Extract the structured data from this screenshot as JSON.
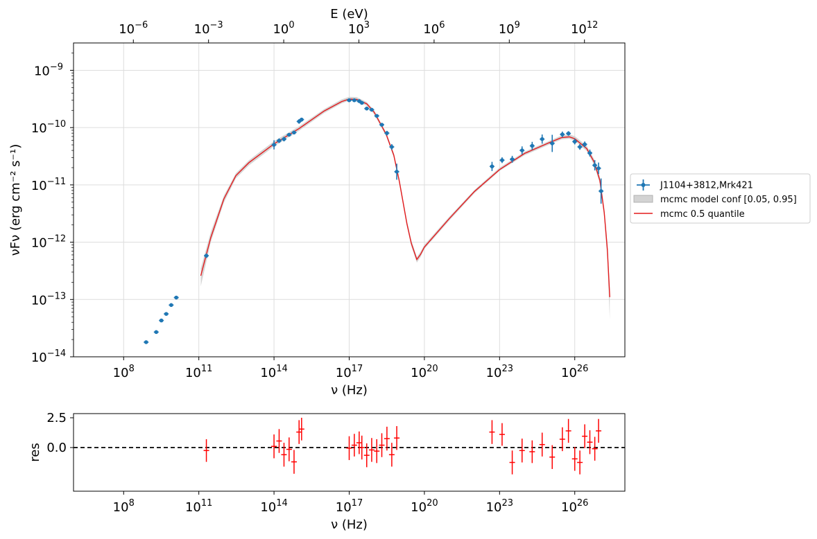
{
  "chart_data": [
    {
      "type": "scatter",
      "panel": "sed",
      "xlabel_top": "E (eV)",
      "xlabel": "ν  (Hz)",
      "ylabel": "νFν  (erg cm⁻²  s⁻¹)",
      "x_scale": "log",
      "y_scale": "log",
      "xlim": [
        1000000.0,
        1e+28
      ],
      "ylim": [
        1e-14,
        3e-09
      ],
      "top_xlim_eV": [
        4.1e-09,
        41000000000000.0
      ],
      "grid": true,
      "legend_location": "right",
      "x_tick_labels": [
        "10^8",
        "10^11",
        "10^14",
        "10^17",
        "10^20",
        "10^23",
        "10^26"
      ],
      "x_tick_values": [
        100000000.0,
        100000000000.0,
        100000000000000.0,
        1e+17,
        1e+20,
        1e+23,
        1e+26
      ],
      "y_tick_labels": [
        "10^−14",
        "10^−13",
        "10^−12",
        "10^−11",
        "10^−10",
        "10^−9"
      ],
      "y_tick_values": [
        1e-14,
        1e-13,
        1e-12,
        1e-11,
        1e-10,
        1e-09
      ],
      "top_tick_labels": [
        "10^−6",
        "10^−3",
        "10^0",
        "10^3",
        "10^6",
        "10^9",
        "10^12"
      ],
      "top_tick_values_eV": [
        1e-06,
        0.001,
        1,
        1000.0,
        1000000.0,
        1000000000.0,
        1000000000000.0
      ],
      "series": [
        {
          "name": "J1104+3812,Mrk421",
          "kind": "data",
          "color": "#1f77b4",
          "x": [
            790000000.0,
            2000000000.0,
            3200000000.0,
            5000000000.0,
            7900000000.0,
            12600000000.0,
            200000000000.0,
            100000000000000.0,
            160000000000000.0,
            250000000000000.0,
            400000000000000.0,
            630000000000000.0,
            1000000000000000.0,
            1260000000000000.0,
            1e+17,
            1.6e+17,
            2.5e+17,
            3.2e+17,
            5e+17,
            7.9e+17,
            1.26e+18,
            2e+18,
            3.2e+18,
            5e+18,
            7.9e+18,
            5e+22,
            1.26e+23,
            3.2e+23,
            7.9e+23,
            2e+24,
            5e+24,
            1.26e+25,
            3.2e+25,
            5.6e+25,
            1e+26,
            1.6e+26,
            2.5e+26,
            4e+26,
            6.3e+26,
            8.9e+26
          ],
          "y": [
            1.8e-14,
            2.7e-14,
            4.3e-14,
            5.6e-14,
            8e-14,
            1.08e-13,
            5.8e-13,
            5e-11,
            5.9e-11,
            6.3e-11,
            7.5e-11,
            8.2e-11,
            1.28e-10,
            1.38e-10,
            3e-10,
            3e-10,
            2.9e-10,
            2.7e-10,
            2.15e-10,
            2.05e-10,
            1.6e-10,
            1.12e-10,
            8e-11,
            4.6e-11,
            1.7e-11,
            2.1e-11,
            2.7e-11,
            2.8e-11,
            4e-11,
            4.8e-11,
            6.3e-11,
            5.3e-11,
            7.6e-11,
            7.9e-11,
            5.7e-11,
            4.6e-11,
            5.1e-11,
            3.6e-11,
            2.2e-11,
            1.95e-11
          ],
          "yerr_dex": [
            0.02,
            0.02,
            0.02,
            0.02,
            0.02,
            0.02,
            0.04,
            0.08,
            0.04,
            0.04,
            0.03,
            0.03,
            0.04,
            0.03,
            0.02,
            0.02,
            0.02,
            0.02,
            0.03,
            0.02,
            0.02,
            0.02,
            0.04,
            0.05,
            0.14,
            0.08,
            0.05,
            0.06,
            0.07,
            0.07,
            0.08,
            0.15,
            0.05,
            0.04,
            0.05,
            0.05,
            0.05,
            0.06,
            0.09,
            0.1
          ],
          "extra_point": {
            "x": 1.12e+27,
            "y": 7.8e-12,
            "yerr_dex": 0.22
          }
        },
        {
          "name": "mcmc model conf [0.05, 0.95]",
          "kind": "band",
          "color": "#d0d0d0",
          "x": [
            120000000000.0,
            300000000000.0,
            1000000000000.0,
            3000000000000.0,
            10000000000000.0,
            100000000000000.0,
            1000000000000000.0,
            1e+16,
            5e+16,
            1e+17,
            2e+17,
            5e+17,
            1e+18,
            3e+18,
            6e+18,
            1e+19,
            2e+19,
            3e+19,
            5e+19,
            7e+19,
            1e+20,
            1e+21,
            1e+22,
            1e+23,
            1e+24,
            1e+25,
            3e+25,
            6e+25,
            1e+26,
            3e+26,
            6e+26,
            1e+27,
            1.5e+27,
            2e+27,
            2.5e+27
          ],
          "y_high": [
            3.5e-13,
            1.5e-12,
            6.5e-12,
            1.6e-11,
            2.7e-11,
            5.8e-11,
            1.05e-10,
            2.1e-10,
            3.1e-10,
            3.45e-10,
            3.4e-10,
            2.8e-10,
            2e-10,
            8.2e-11,
            3.6e-11,
            1.3e-11,
            2.4e-12,
            1.1e-12,
            5.5e-13,
            6.8e-13,
            9e-13,
            2.8e-12,
            8.2e-12,
            2e-11,
            3.8e-11,
            5.9e-11,
            7.3e-11,
            7.6e-11,
            7.1e-11,
            4.8e-11,
            2.8e-11,
            1.4e-11,
            4e-12,
            1e-12,
            1.6e-13
          ],
          "y_low": [
            1.7e-13,
            1e-12,
            4.9e-12,
            1.3e-11,
            2.2e-11,
            4.7e-11,
            8.8e-11,
            1.8e-10,
            2.65e-10,
            2.95e-10,
            2.9e-10,
            2.4e-10,
            1.7e-10,
            7e-11,
            3e-11,
            1.05e-11,
            1.9e-12,
            8.5e-13,
            4.4e-13,
            5.5e-13,
            7.6e-13,
            2.4e-12,
            7.2e-12,
            1.75e-11,
            3.3e-11,
            5.1e-11,
            6.2e-11,
            6.4e-11,
            5.9e-11,
            3.9e-11,
            2.2e-11,
            1.05e-11,
            2.7e-12,
            5e-13,
            4.5e-14
          ]
        },
        {
          "name": "mcmc 0.5 quantile",
          "kind": "line",
          "color": "#e31a1c",
          "x": [
            120000000000.0,
            300000000000.0,
            1000000000000.0,
            3000000000000.0,
            10000000000000.0,
            100000000000000.0,
            1000000000000000.0,
            1e+16,
            5e+16,
            1e+17,
            2e+17,
            5e+17,
            1e+18,
            3e+18,
            6e+18,
            1e+19,
            2e+19,
            3e+19,
            5e+19,
            7e+19,
            1e+20,
            1e+21,
            1e+22,
            1e+23,
            1e+24,
            1e+25,
            3e+25,
            6e+25,
            1e+26,
            3e+26,
            6e+26,
            1e+27,
            1.5e+27,
            2e+27,
            2.5e+27
          ],
          "y": [
            2.6e-13,
            1.2e-12,
            5.7e-12,
            1.45e-11,
            2.45e-11,
            5.2e-11,
            9.6e-11,
            1.95e-10,
            2.85e-10,
            3.15e-10,
            3.1e-10,
            2.6e-10,
            1.85e-10,
            7.6e-11,
            3.3e-11,
            1.15e-11,
            2.1e-12,
            9.6e-13,
            5e-13,
            6.1e-13,
            8.2e-13,
            2.6e-12,
            7.7e-12,
            1.85e-11,
            3.55e-11,
            5.5e-11,
            6.7e-11,
            6.9e-11,
            6.4e-11,
            4.3e-11,
            2.5e-11,
            1.2e-11,
            3.3e-12,
            7.5e-13,
            1.1e-13
          ]
        }
      ]
    },
    {
      "type": "scatter",
      "panel": "residuals",
      "xlabel": "ν  (Hz)",
      "ylabel": "res",
      "x_scale": "log",
      "xlim": [
        1000000.0,
        1e+28
      ],
      "ylim": [
        -2.5,
        2.5
      ],
      "x_tick_labels": [
        "10^8",
        "10^11",
        "10^14",
        "10^17",
        "10^20",
        "10^23",
        "10^26"
      ],
      "x_tick_values": [
        100000000.0,
        100000000000.0,
        100000000000000.0,
        1e+17,
        1e+20,
        1e+23,
        1e+26
      ],
      "y_tick_labels": [
        "2.5",
        "0.0"
      ],
      "y_tick_values": [
        2.5,
        0.0
      ],
      "reference_line": {
        "y": 0.0,
        "style": "dashed",
        "color": "#000000"
      },
      "series": [
        {
          "name": "residuals",
          "color": "#ff0000",
          "x": [
            200000000000.0,
            100000000000000.0,
            160000000000000.0,
            250000000000000.0,
            400000000000000.0,
            630000000000000.0,
            1000000000000000.0,
            1260000000000000.0,
            1e+17,
            1.6e+17,
            2.5e+17,
            3.2e+17,
            5e+17,
            7.9e+17,
            1.26e+18,
            2e+18,
            3.2e+18,
            5e+18,
            7.9e+18,
            5e+22,
            1.26e+23,
            3.2e+23,
            7.9e+23,
            2e+24,
            5e+24,
            1.26e+25,
            3.2e+25,
            5.6e+25,
            1e+26,
            1.6e+26,
            2.5e+26,
            4e+26,
            6.3e+26,
            8.9e+26
          ],
          "y": [
            -0.25,
            0.1,
            0.55,
            -0.6,
            -0.15,
            -1.2,
            1.3,
            1.55,
            -0.05,
            0.2,
            0.4,
            0.0,
            -0.65,
            -0.2,
            -0.3,
            0.2,
            0.75,
            -0.6,
            0.8,
            1.3,
            1.1,
            -1.25,
            -0.25,
            -0.35,
            0.25,
            -0.8,
            0.7,
            1.4,
            -0.95,
            -1.25,
            0.95,
            0.45,
            -0.1,
            1.4
          ],
          "yerr": [
            0.95,
            1.0,
            1.0,
            1.0,
            1.0,
            1.0,
            1.0,
            0.95,
            1.0,
            0.95,
            0.95,
            1.0,
            1.0,
            1.0,
            1.0,
            1.0,
            1.0,
            1.0,
            1.0,
            1.0,
            0.95,
            1.0,
            1.0,
            0.95,
            1.0,
            1.0,
            1.0,
            1.0,
            1.0,
            1.0,
            1.0,
            1.0,
            1.0,
            1.0
          ]
        }
      ]
    }
  ],
  "legend": {
    "items": [
      {
        "label": "J1104+3812,Mrk421"
      },
      {
        "label": "mcmc model conf [0.05, 0.95]"
      },
      {
        "label": "mcmc 0.5 quantile"
      }
    ]
  }
}
